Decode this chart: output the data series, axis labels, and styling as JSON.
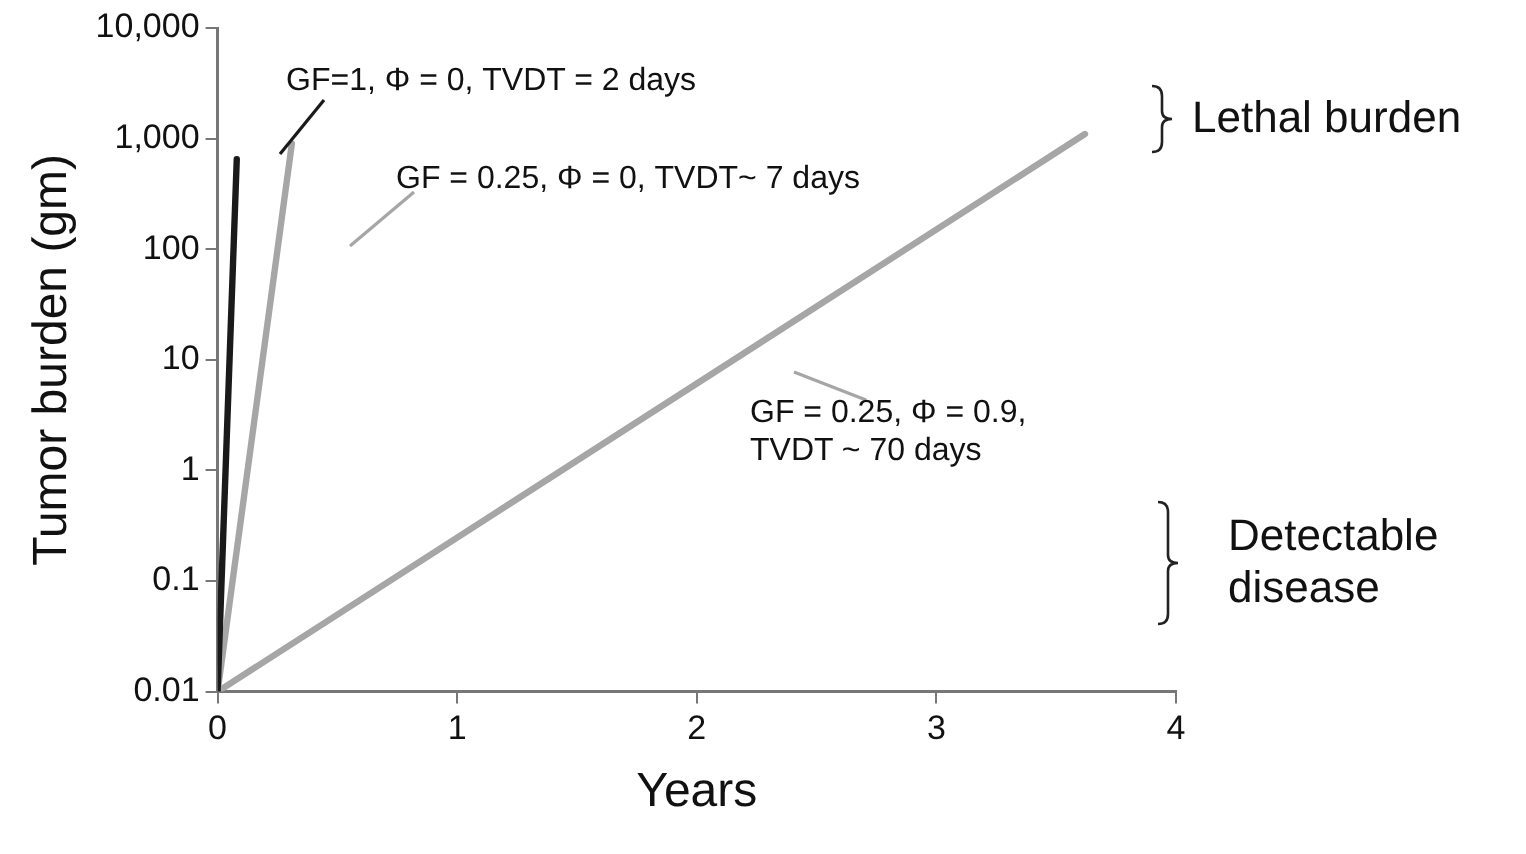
{
  "chart_data": {
    "type": "line",
    "xlabel": "Years",
    "ylabel": "Tumor burden (gm)",
    "log": "y",
    "grid": false,
    "legend": false,
    "marker": "none",
    "line_style": "solid",
    "xlim": [
      0,
      4
    ],
    "xticks": [
      0,
      1,
      2,
      3,
      4
    ],
    "ylim": [
      0.01,
      10000
    ],
    "yticks": [
      0.01,
      0.1,
      1,
      10,
      100,
      {
        "value": 1000,
        "label": "1,000"
      },
      {
        "value": 10000,
        "label": "10,000"
      }
    ],
    "series": [
      {
        "color": "#1a1a1a",
        "x": [
          0,
          0.08
        ],
        "values": [
          0.01,
          650
        ]
      },
      {
        "color": "#a6a6a6",
        "x": [
          0,
          0.31
        ],
        "values": [
          0.01,
          900
        ]
      },
      {
        "color": "#a6a6a6",
        "x": [
          0,
          3.62
        ],
        "values": [
          0.01,
          1100
        ]
      }
    ],
    "annotations": [
      "GF=1, Φ = 0, TVDT = 2 days",
      "GF = 0.25, Φ = 0, TVDT~ 7 days",
      "GF = 0.25, Φ = 0.9,\nTVDT ~ 70 days",
      "Lethal burden",
      "Detectable disease"
    ]
  }
}
